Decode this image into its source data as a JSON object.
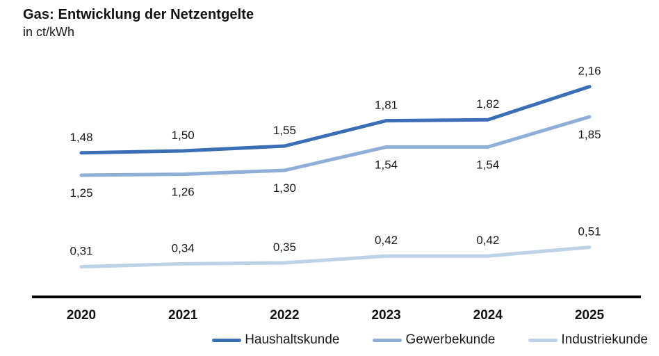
{
  "header": {
    "title": "Gas: Entwicklung der Netzentgelte",
    "subtitle": "in ct/kWh"
  },
  "chart_data": {
    "type": "line",
    "title": "Gas: Entwicklung der Netzentgelte",
    "ylabel": "in ct/kWh",
    "categories": [
      "2020",
      "2021",
      "2022",
      "2023",
      "2024",
      "2025"
    ],
    "series": [
      {
        "name": "Haushaltskunde",
        "color": "#3A6FB5",
        "values": [
          1.48,
          1.5,
          1.55,
          1.81,
          1.82,
          2.16
        ],
        "labels": [
          "1,48",
          "1,50",
          "1,55",
          "1,81",
          "1,82",
          "2,16"
        ],
        "label_position": "above"
      },
      {
        "name": "Gewerbekunde",
        "color": "#8FAFD8",
        "values": [
          1.25,
          1.26,
          1.3,
          1.54,
          1.54,
          1.85
        ],
        "labels": [
          "1,25",
          "1,26",
          "1,30",
          "1,54",
          "1,54",
          "1,85"
        ],
        "label_position": "below"
      },
      {
        "name": "Industriekunde",
        "color": "#BDD1E8",
        "values": [
          0.31,
          0.34,
          0.35,
          0.42,
          0.42,
          0.51
        ],
        "labels": [
          "0,31",
          "0,34",
          "0,35",
          "0,42",
          "0,42",
          "0,51"
        ],
        "label_position": "above"
      }
    ],
    "ylim": [
      0,
      2.9
    ],
    "grid": false,
    "value_decimal_separator": ",",
    "legend_position": "bottom-right",
    "axis_color": "#000000",
    "text_color": "#1a1a1a"
  }
}
